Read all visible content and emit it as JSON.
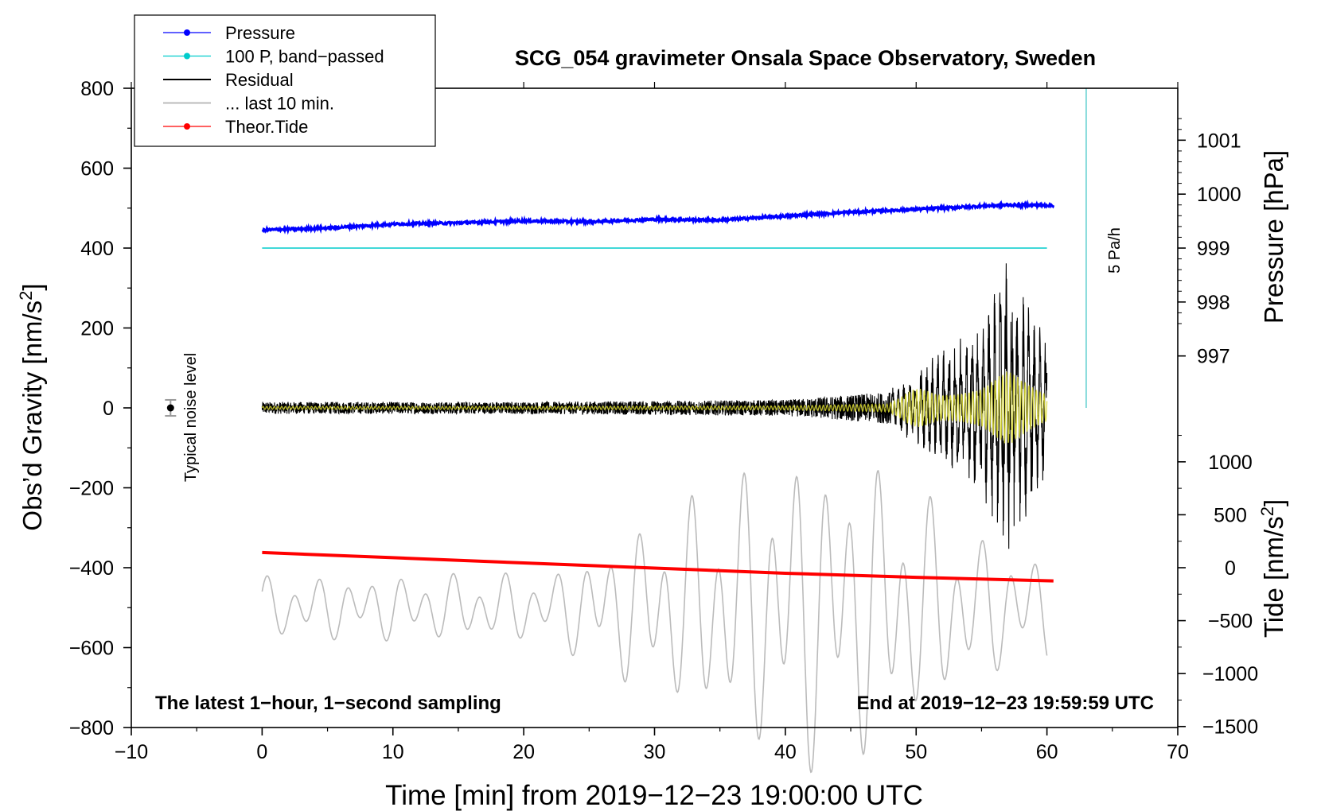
{
  "chart_data": {
    "type": "line",
    "title": "SCG_054 gravimeter Onsala Space Observatory, Sweden",
    "xlabel": "Time [min] from 2019−12−23 19:00:00 UTC",
    "ylabel": "Obs’d Gravity [nm/s²]",
    "ylabel_parts": {
      "main": "Obs’d Gravity [nm/s",
      "sup": "2",
      "end": "]"
    },
    "y2label_pressure": "Pressure [hPa]",
    "y2label_tide": {
      "main": "Tide [nm/s",
      "sup": "2",
      "end": "]"
    },
    "xlim": [
      -10,
      70
    ],
    "ylim": [
      -800,
      800
    ],
    "x_ticks": [
      -10,
      0,
      10,
      20,
      30,
      40,
      50,
      60,
      70
    ],
    "x_tick_labels": [
      "−10",
      "0",
      "10",
      "20",
      "30",
      "40",
      "50",
      "60",
      "70"
    ],
    "y_ticks": [
      800,
      600,
      400,
      200,
      0,
      -200,
      -400,
      -600,
      -800
    ],
    "y_tick_labels": [
      "800",
      "600",
      "400",
      "200",
      "0",
      "−200",
      "−400",
      "−600",
      "−800"
    ],
    "pressure_axis": {
      "ticks": [
        1001,
        1000,
        999,
        998,
        997
      ],
      "tick_labels": [
        "1001",
        "1000",
        "999",
        "998",
        "997"
      ],
      "gravity_at_999": 400,
      "gravity_per_hPa": 135
    },
    "tide_axis": {
      "ticks": [
        1000,
        500,
        0,
        -500,
        -1000,
        -1500
      ],
      "tick_labels": [
        "1000",
        "500",
        "0",
        "−500",
        "−1000",
        "−1500"
      ],
      "gravity_at_0": -400,
      "gravity_per_1000": 265
    },
    "legend": {
      "position": "top-left",
      "entries": [
        {
          "label": "Pressure",
          "color": "#0000ff",
          "marker": true
        },
        {
          "label": "100 P, band−passed",
          "color": "#00cccc",
          "marker": true
        },
        {
          "label": "Residual",
          "color": "#000000",
          "marker": false
        },
        {
          "label": "... last 10 min.",
          "color": "#bbbbbb",
          "marker": false
        },
        {
          "label": "Theor.Tide",
          "color": "#ff0000",
          "marker": true
        }
      ]
    },
    "series": [
      {
        "name": "Pressure",
        "color": "#0000ff",
        "x": [
          0,
          5,
          10,
          15,
          20,
          25,
          30,
          35,
          40,
          45,
          50,
          55,
          57,
          60
        ],
        "y": [
          445,
          450,
          460,
          463,
          468,
          466,
          472,
          470,
          480,
          490,
          497,
          505,
          508,
          507
        ]
      },
      {
        "name": "100 P, band-passed",
        "color": "#00cccc",
        "x": [
          0,
          60
        ],
        "y": [
          400,
          400
        ]
      },
      {
        "name": "Theor.Tide",
        "color": "#ff0000",
        "x": [
          0,
          10,
          20,
          30,
          40,
          50,
          60.5
        ],
        "y": [
          -362,
          -375,
          -388,
          -401,
          -414,
          -424,
          -433
        ]
      },
      {
        "name": "Residual",
        "color": "#000000",
        "x_range": [
          0,
          60
        ],
        "envelope": [
          [
            0,
            15
          ],
          [
            20,
            15
          ],
          [
            40,
            20
          ],
          [
            48,
            40
          ],
          [
            50,
            80
          ],
          [
            55,
            200
          ],
          [
            57,
            330
          ],
          [
            60,
            150
          ]
        ]
      },
      {
        "name": "... last 10 min.",
        "color": "#bbbbbb",
        "x_range": [
          0,
          60
        ],
        "baseline": -500,
        "envelope": [
          [
            0,
            80
          ],
          [
            22,
            90
          ],
          [
            35,
            320
          ],
          [
            41,
            420
          ],
          [
            47,
            380
          ],
          [
            55,
            180
          ],
          [
            60,
            140
          ]
        ]
      }
    ],
    "scale_bar": {
      "label": "5 Pa/h",
      "x": 63,
      "y_from": 0,
      "y_to": 800
    },
    "noise_marker": {
      "label": "Typical noise level",
      "x": -7,
      "y": 0,
      "error": 20
    },
    "annotations": {
      "left": "The latest 1−hour, 1−second sampling",
      "right": "End at 2019−12−23 19:59:59 UTC"
    },
    "colors": {
      "yellow_overlay": "#d9d933"
    }
  }
}
